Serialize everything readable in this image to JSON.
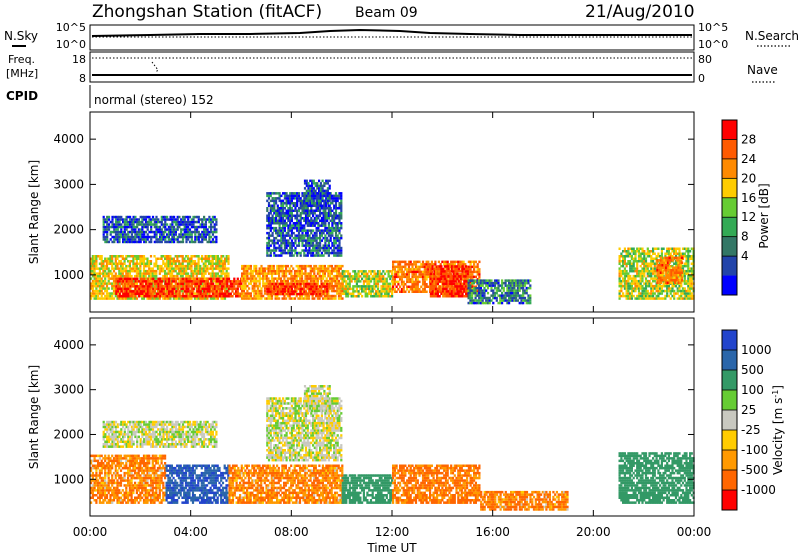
{
  "header": {
    "station": "Zhongshan Station (fitACF)",
    "beam": "Beam 09",
    "date": "21/Aug/2010"
  },
  "strip_sky": {
    "left_label": "N.Sky",
    "right_label": "N.Search",
    "ticks_left": [
      "10^5",
      "10^0"
    ],
    "ticks_right": [
      "10^5",
      "10^0"
    ]
  },
  "strip_freq": {
    "left_label_1": "Freq.",
    "left_label_2": "[MHz]",
    "right_label": "Nave",
    "ticks_left": [
      "18",
      "8"
    ],
    "ticks_right": [
      "80",
      "0"
    ]
  },
  "cpid": {
    "label": "CPID",
    "text": "normal (stereo) 152"
  },
  "time_axis": {
    "ticks": [
      "00:00",
      "04:00",
      "08:00",
      "12:00",
      "16:00",
      "20:00",
      "00:00"
    ],
    "label": "Time UT"
  },
  "power_colorbar": {
    "label": "Power [dB]",
    "ticks": [
      "28",
      "24",
      "20",
      "16",
      "12",
      "8",
      "4"
    ],
    "colors": [
      "#ff0000",
      "#ff5a00",
      "#ff8a00",
      "#ffcc00",
      "#66cc33",
      "#33aa55",
      "#337766",
      "#2244aa",
      "#0000ff"
    ]
  },
  "velocity_colorbar": {
    "label_main": "Velocity [m s",
    "label_exp": "-1",
    "label_close": "]",
    "ticks": [
      "1000",
      "500",
      "100",
      "25",
      "-25",
      "-100",
      "-500",
      "-1000"
    ],
    "colors": [
      "#2244cc",
      "#2a66aa",
      "#339966",
      "#66cc33",
      "#c8c8c0",
      "#ffcc00",
      "#ff9900",
      "#ff6600",
      "#ff0000"
    ]
  },
  "chart_data": [
    {
      "type": "heatmap",
      "panel": "power",
      "ylabel": "Slant Range [km]",
      "y_ticks": [
        1000,
        2000,
        3000,
        4000
      ],
      "ylim": [
        180,
        4600
      ],
      "xlim_hours": [
        0,
        24
      ],
      "value_label": "Power [dB]",
      "bands": [
        {
          "t0": 0.0,
          "t1": 5.5,
          "r0": 450,
          "r1": 1400,
          "v": 16
        },
        {
          "t0": 1.0,
          "t1": 6.0,
          "r0": 500,
          "r1": 900,
          "v": 26
        },
        {
          "t0": 6.0,
          "t1": 10.0,
          "r0": 450,
          "r1": 1200,
          "v": 20
        },
        {
          "t0": 7.0,
          "t1": 9.5,
          "r0": 550,
          "r1": 800,
          "v": 27
        },
        {
          "t0": 10.0,
          "t1": 12.0,
          "r0": 500,
          "r1": 1100,
          "v": 14
        },
        {
          "t0": 12.0,
          "t1": 15.5,
          "r0": 600,
          "r1": 1300,
          "v": 22
        },
        {
          "t0": 13.5,
          "t1": 15.0,
          "r0": 500,
          "r1": 1200,
          "v": 26
        },
        {
          "t0": 15.0,
          "t1": 17.5,
          "r0": 350,
          "r1": 900,
          "v": 8
        },
        {
          "t0": 21.0,
          "t1": 24.0,
          "r0": 450,
          "r1": 1600,
          "v": 14
        },
        {
          "t0": 22.5,
          "t1": 23.5,
          "r0": 800,
          "r1": 1400,
          "v": 22
        },
        {
          "t0": 0.5,
          "t1": 5.0,
          "r0": 1700,
          "r1": 2300,
          "v": 6
        },
        {
          "t0": 7.0,
          "t1": 10.0,
          "r0": 1400,
          "r1": 2800,
          "v": 6
        },
        {
          "t0": 8.5,
          "t1": 9.5,
          "r0": 2500,
          "r1": 3100,
          "v": 6
        }
      ]
    },
    {
      "type": "heatmap",
      "panel": "velocity",
      "ylabel": "Slant Range [km]",
      "y_ticks": [
        1000,
        2000,
        3000,
        4000
      ],
      "ylim": [
        180,
        4600
      ],
      "xlim_hours": [
        0,
        24
      ],
      "value_label": "Velocity [m s-1]",
      "bands": [
        {
          "t0": 0.0,
          "t1": 3.0,
          "r0": 450,
          "r1": 1500,
          "v": -300
        },
        {
          "t0": 3.0,
          "t1": 5.5,
          "r0": 450,
          "r1": 1300,
          "v": 700
        },
        {
          "t0": 5.5,
          "t1": 10.0,
          "r0": 450,
          "r1": 1300,
          "v": -300
        },
        {
          "t0": 10.0,
          "t1": 12.0,
          "r0": 450,
          "r1": 1100,
          "v": 150
        },
        {
          "t0": 12.0,
          "t1": 15.5,
          "r0": 450,
          "r1": 1300,
          "v": -400
        },
        {
          "t0": 15.5,
          "t1": 19.0,
          "r0": 300,
          "r1": 700,
          "v": -300
        },
        {
          "t0": 21.0,
          "t1": 24.0,
          "r0": 450,
          "r1": 1600,
          "v": 200
        },
        {
          "t0": 0.5,
          "t1": 5.0,
          "r0": 1700,
          "r1": 2300,
          "v": 0
        },
        {
          "t0": 7.0,
          "t1": 10.0,
          "r0": 1400,
          "r1": 2800,
          "v": 0
        },
        {
          "t0": 8.5,
          "t1": 9.5,
          "r0": 2500,
          "r1": 3100,
          "v": 0
        }
      ]
    }
  ]
}
